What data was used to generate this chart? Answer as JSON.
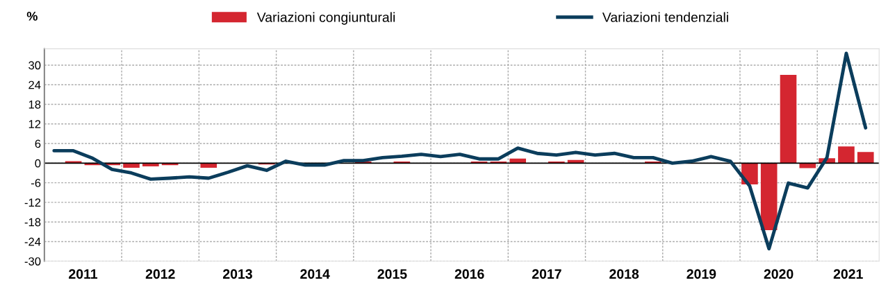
{
  "chart_data": {
    "type": "bar",
    "ylabel": "%",
    "x": [
      2011.125,
      2011.375,
      2011.625,
      2011.875,
      2012.125,
      2012.375,
      2012.625,
      2012.875,
      2013.125,
      2013.375,
      2013.625,
      2013.875,
      2014.125,
      2014.375,
      2014.625,
      2014.875,
      2015.125,
      2015.375,
      2015.625,
      2015.875,
      2016.125,
      2016.375,
      2016.625,
      2016.875,
      2017.125,
      2017.375,
      2017.625,
      2017.875,
      2018.125,
      2018.375,
      2018.625,
      2018.875,
      2019.125,
      2019.375,
      2019.625,
      2019.875,
      2020.125,
      2020.375,
      2020.625,
      2020.875,
      2021.125,
      2021.375,
      2021.625
    ],
    "series": [
      {
        "name": "Variazioni congiunturali",
        "color": "#d42630",
        "values": [
          0,
          0.6,
          -0.6,
          -0.6,
          -1.4,
          -1.0,
          -0.6,
          0,
          -1.4,
          0,
          0,
          -0.4,
          null,
          0,
          0,
          0,
          0.5,
          0,
          0.5,
          0,
          0,
          0,
          0.5,
          0.5,
          1.4,
          0,
          0.5,
          1.0,
          0,
          0,
          0,
          0.5,
          0,
          0,
          0,
          0,
          -6.5,
          -20.5,
          27.0,
          -1.5,
          1.5,
          5.1,
          3.4
        ]
      },
      {
        "name": "Variazioni tendenziali",
        "type": "line",
        "color": "#0b3d5c",
        "values": [
          3.8,
          3.8,
          1.5,
          -1.9,
          -3.0,
          -4.9,
          -4.6,
          -4.2,
          -4.6,
          -2.8,
          -0.8,
          -2.2,
          0.6,
          -0.6,
          -0.6,
          0.8,
          0.8,
          1.7,
          2.1,
          2.7,
          2.0,
          2.7,
          1.3,
          1.3,
          4.6,
          3.0,
          2.5,
          3.3,
          2.5,
          3.0,
          1.7,
          1.7,
          0.0,
          0.6,
          2.0,
          0.6,
          -7.0,
          -26.2,
          -6.1,
          -7.6,
          1.7,
          33.6,
          10.8
        ]
      }
    ],
    "xlim": [
      2011,
      2021.8
    ],
    "xticks": [
      {
        "value": 2012,
        "label": null
      },
      {
        "value": 2013,
        "label": null
      },
      {
        "value": 2014,
        "label": null
      },
      {
        "value": 2015,
        "label": null
      },
      {
        "value": 2016,
        "label": null
      },
      {
        "value": 2017,
        "label": null
      },
      {
        "value": 2018,
        "label": null
      },
      {
        "value": 2019,
        "label": null
      },
      {
        "value": 2020,
        "label": null
      },
      {
        "value": 2021,
        "label": null
      },
      {
        "value": 2011.5,
        "label": "2011"
      },
      {
        "value": 2012.5,
        "label": "2012"
      },
      {
        "value": 2013.5,
        "label": "2013"
      },
      {
        "value": 2014.5,
        "label": "2014"
      },
      {
        "value": 2015.5,
        "label": "2015"
      },
      {
        "value": 2016.5,
        "label": "2016"
      },
      {
        "value": 2017.5,
        "label": "2017"
      },
      {
        "value": 2018.5,
        "label": "2018"
      },
      {
        "value": 2019.5,
        "label": "2019"
      },
      {
        "value": 2020.5,
        "label": "2020"
      },
      {
        "value": 2021.4,
        "label": "2021"
      }
    ],
    "ylim": [
      -30,
      35
    ],
    "yticks": [
      {
        "value": -30,
        "label": "-30"
      },
      {
        "value": -24,
        "label": "-24"
      },
      {
        "value": -18,
        "label": "-18"
      },
      {
        "value": -12,
        "label": "-12"
      },
      {
        "value": -6,
        "label": "-6"
      },
      0,
      6,
      12,
      18,
      24,
      30
    ],
    "grid": true,
    "legend": "top"
  }
}
